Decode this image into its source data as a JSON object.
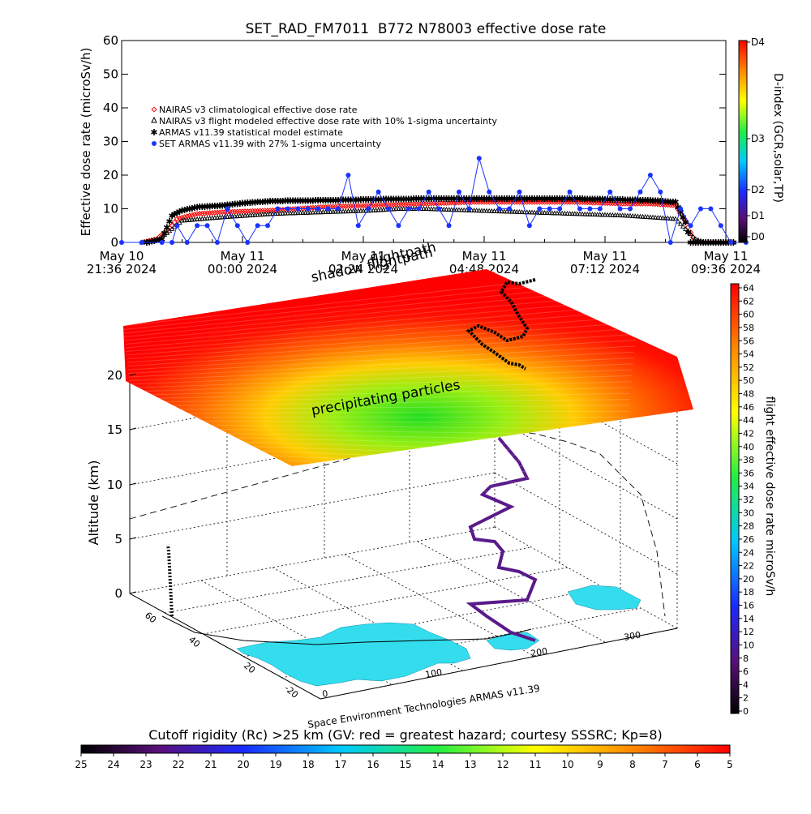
{
  "chart_data": [
    {
      "type": "scatter",
      "title": "SET_RAD_FM7011  B772 N78003 effective dose rate",
      "ylabel": "Effective dose rate (microSv/h)",
      "ylim": [
        0,
        60
      ],
      "yticks": [
        "0",
        "10",
        "20",
        "30",
        "40",
        "50",
        "60"
      ],
      "x_range_hours": [
        0,
        12
      ],
      "xticks": [
        {
          "l1": "May 10",
          "l2": "21:36 2024",
          "hour": 0
        },
        {
          "l1": "May 11",
          "l2": "00:00 2024",
          "hour": 2.4
        },
        {
          "l1": "May 11",
          "l2": "02:24 2024",
          "hour": 4.8
        },
        {
          "l1": "May 11",
          "l2": "04:48 2024",
          "hour": 7.2
        },
        {
          "l1": "May 11",
          "l2": "07:12 2024",
          "hour": 9.6
        },
        {
          "l1": "May 11",
          "l2": "09:36 2024",
          "hour": 12
        }
      ],
      "legend": [
        {
          "label": "NAIRAS v3 climatological effective dose rate",
          "color": "#ff0000",
          "marker": "diamond"
        },
        {
          "label": "NAIRAS v3 flight modeled effective dose rate with 10% 1-sigma uncertainty",
          "color": "#000000",
          "marker": "triangle"
        },
        {
          "label": "ARMAS v11.39 statistical model estimate",
          "color": "#33ff33",
          "marker": "star"
        },
        {
          "label": "SET ARMAS v11.39 with 27% 1-sigma uncertainty",
          "color": "#1a33ff",
          "marker": "circle"
        }
      ],
      "series": [
        {
          "name": "NAIRAS v3 climatological effective dose rate",
          "color": "#ff0000",
          "points": [
            [
              0.4,
              0
            ],
            [
              0.7,
              1
            ],
            [
              1.0,
              5
            ],
            [
              1.1,
              7
            ],
            [
              1.5,
              8.5
            ],
            [
              2.0,
              9
            ],
            [
              3.0,
              9.5
            ],
            [
              4.0,
              10.5
            ],
            [
              5.0,
              11
            ],
            [
              6.0,
              11.5
            ],
            [
              7.0,
              12
            ],
            [
              8.0,
              12
            ],
            [
              9.0,
              12
            ],
            [
              10.0,
              11.5
            ],
            [
              10.5,
              11.5
            ],
            [
              11.0,
              11
            ],
            [
              11.2,
              6
            ],
            [
              11.4,
              0
            ],
            [
              12.2,
              0
            ]
          ]
        },
        {
          "name": "NAIRAS v3 flight modeled effective dose rate with 10% 1-sigma uncertainty",
          "color": "#000000",
          "points": [
            [
              0.4,
              0
            ],
            [
              0.7,
              0.5
            ],
            [
              1.0,
              4
            ],
            [
              1.2,
              6.5
            ],
            [
              1.6,
              7
            ],
            [
              2.0,
              7.5
            ],
            [
              2.5,
              8
            ],
            [
              3.0,
              8.5
            ],
            [
              4.0,
              9
            ],
            [
              5.0,
              9.5
            ],
            [
              5.5,
              10
            ],
            [
              6.0,
              10
            ],
            [
              7.0,
              9.5
            ],
            [
              8.0,
              9
            ],
            [
              9.0,
              8.5
            ],
            [
              10.0,
              8
            ],
            [
              10.5,
              7.5
            ],
            [
              11.0,
              7
            ],
            [
              11.2,
              4
            ],
            [
              11.4,
              1
            ],
            [
              11.6,
              0
            ],
            [
              12.2,
              0
            ]
          ]
        },
        {
          "name": "ARMAS v11.39 statistical model estimate",
          "color": "#33ff33",
          "points": [
            [
              0.5,
              0
            ],
            [
              0.8,
              1
            ],
            [
              1.0,
              8
            ],
            [
              1.2,
              9.5
            ],
            [
              1.5,
              10.5
            ],
            [
              2.0,
              11
            ],
            [
              2.5,
              11.8
            ],
            [
              3.0,
              12.3
            ],
            [
              4.0,
              12.5
            ],
            [
              5.0,
              12.8
            ],
            [
              6.0,
              13
            ],
            [
              7.0,
              13
            ],
            [
              8.0,
              13
            ],
            [
              9.0,
              13
            ],
            [
              10.0,
              12.7
            ],
            [
              10.5,
              12.5
            ],
            [
              11.0,
              12
            ],
            [
              11.2,
              6
            ],
            [
              11.3,
              0
            ],
            [
              12.2,
              0
            ]
          ]
        },
        {
          "name": "SET ARMAS v11.39 with 27% 1-sigma uncertainty",
          "color": "#1a33ff",
          "points": [
            [
              0.0,
              0
            ],
            [
              0.4,
              0
            ],
            [
              0.8,
              0
            ],
            [
              1.0,
              0
            ],
            [
              1.1,
              5
            ],
            [
              1.3,
              0
            ],
            [
              1.5,
              5
            ],
            [
              1.7,
              5
            ],
            [
              1.9,
              0
            ],
            [
              2.1,
              10
            ],
            [
              2.3,
              5
            ],
            [
              2.5,
              0
            ],
            [
              2.7,
              5
            ],
            [
              2.9,
              5
            ],
            [
              3.1,
              10
            ],
            [
              3.3,
              10
            ],
            [
              3.5,
              10
            ],
            [
              3.7,
              10
            ],
            [
              3.9,
              10
            ],
            [
              4.1,
              10
            ],
            [
              4.3,
              10
            ],
            [
              4.5,
              20
            ],
            [
              4.7,
              5
            ],
            [
              4.9,
              10
            ],
            [
              5.1,
              15
            ],
            [
              5.3,
              10
            ],
            [
              5.5,
              5
            ],
            [
              5.7,
              10
            ],
            [
              5.9,
              10
            ],
            [
              6.1,
              15
            ],
            [
              6.3,
              10
            ],
            [
              6.5,
              5
            ],
            [
              6.7,
              15
            ],
            [
              6.9,
              10
            ],
            [
              7.1,
              25
            ],
            [
              7.3,
              15
            ],
            [
              7.5,
              10
            ],
            [
              7.7,
              10
            ],
            [
              7.9,
              15
            ],
            [
              8.1,
              5
            ],
            [
              8.3,
              10
            ],
            [
              8.5,
              10
            ],
            [
              8.7,
              10
            ],
            [
              8.9,
              15
            ],
            [
              9.1,
              10
            ],
            [
              9.3,
              10
            ],
            [
              9.5,
              10
            ],
            [
              9.7,
              15
            ],
            [
              9.9,
              10
            ],
            [
              10.1,
              10
            ],
            [
              10.3,
              15
            ],
            [
              10.5,
              20
            ],
            [
              10.7,
              15
            ],
            [
              10.9,
              0
            ],
            [
              11.1,
              10
            ],
            [
              11.3,
              5
            ],
            [
              11.5,
              10
            ],
            [
              11.7,
              10
            ],
            [
              11.9,
              5
            ],
            [
              12.1,
              0
            ],
            [
              12.4,
              0
            ]
          ]
        }
      ],
      "colorbar": {
        "label": "D-index (GCR,solar,TP)",
        "ticks": [
          "D4",
          "D3",
          "D2",
          "D1",
          "D0"
        ]
      }
    },
    {
      "type": "scatter3d",
      "zlabel": "Altitude (km)",
      "zticks": [
        "0",
        "5",
        "10",
        "15",
        "20"
      ],
      "longitude_ticks": [
        "0",
        "100",
        "200",
        "300"
      ],
      "latitude_ticks": [
        "60",
        "40",
        "20",
        "-20"
      ],
      "annotations": [
        "shadow flightpath",
        "flightpath",
        "precipitating particles"
      ],
      "credit": "Space Environment Technologies ARMAS v11.39",
      "colorbar": {
        "label": "flight effective dose rate microSv/h",
        "range": [
          0,
          64
        ],
        "ticks": [
          "64",
          "62",
          "60",
          "58",
          "56",
          "54",
          "52",
          "50",
          "48",
          "46",
          "44",
          "42",
          "40",
          "38",
          "36",
          "34",
          "32",
          "30",
          "28",
          "26",
          "24",
          "22",
          "20",
          "18",
          "16",
          "14",
          "12",
          "10",
          "8",
          "6",
          "4",
          "2",
          "0"
        ]
      },
      "bottom_colorbar": {
        "title": "Cutoff rigidity (Rc) >25 km (GV: red = greatest hazard; courtesy SSSRC; Kp=8)",
        "ticks": [
          "25",
          "24",
          "23",
          "22",
          "21",
          "20",
          "19",
          "18",
          "17",
          "16",
          "15",
          "14",
          "13",
          "12",
          "11",
          "10",
          "9",
          "8",
          "7",
          "6",
          "5"
        ]
      }
    }
  ]
}
